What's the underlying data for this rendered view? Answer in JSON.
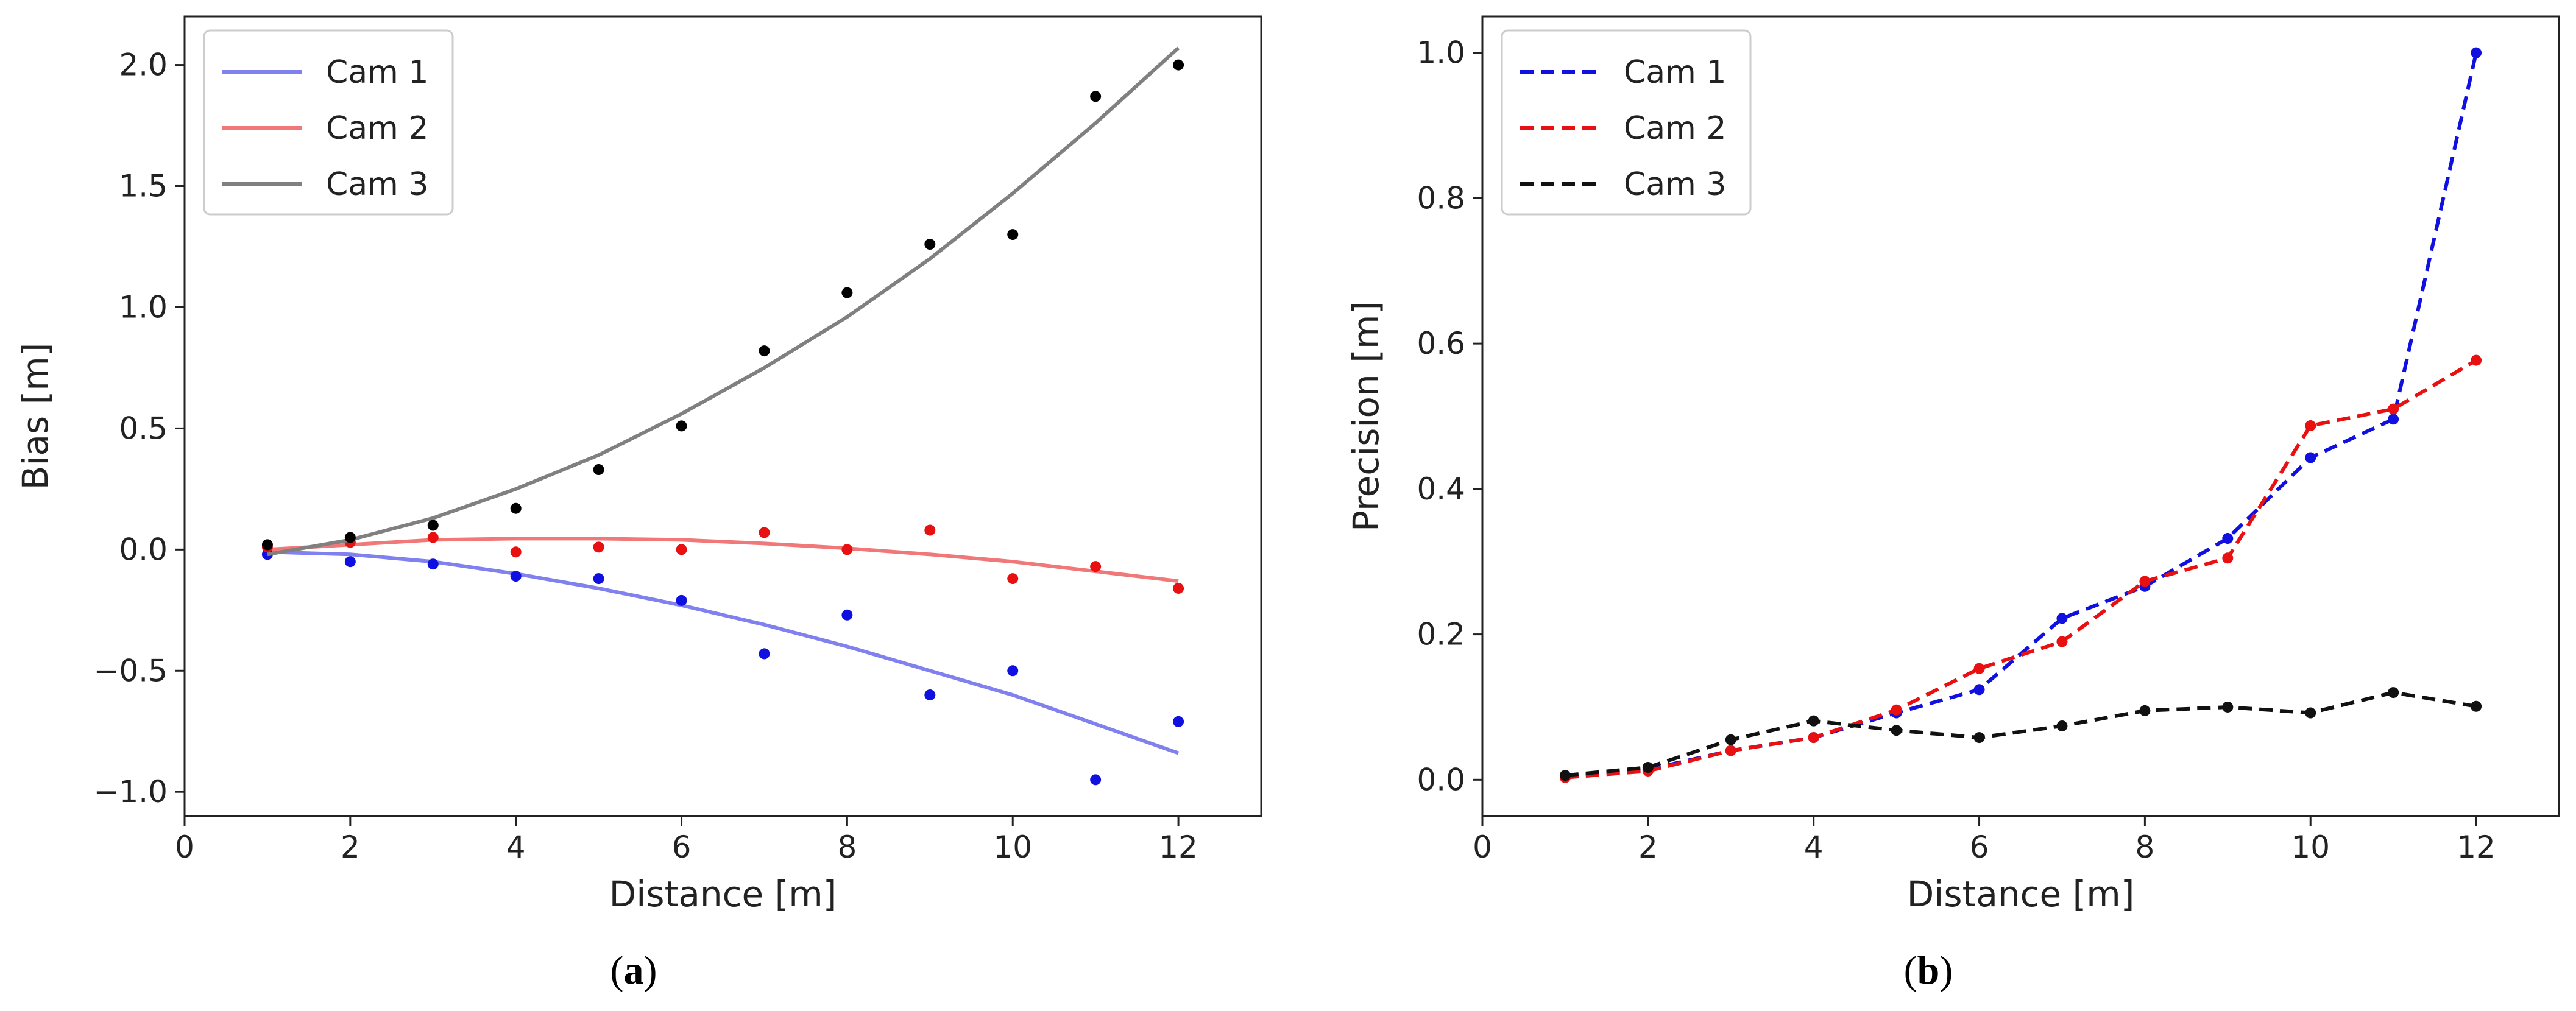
{
  "chart_data": [
    {
      "type": "scatter",
      "caption_open": "(",
      "caption_letter": "a",
      "caption_close": ")",
      "title": "",
      "xlabel": "Distance [m]",
      "ylabel": "Bias [m]",
      "xlim": [
        0,
        13
      ],
      "ylim": [
        -1.1,
        2.2
      ],
      "xticks": [
        0,
        2,
        4,
        6,
        8,
        10,
        12
      ],
      "yticks": [
        -1.0,
        -0.5,
        0.0,
        0.5,
        1.0,
        1.5,
        2.0
      ],
      "ytick_labels": [
        "−1.0",
        "−0.5",
        "0.0",
        "0.5",
        "1.0",
        "1.5",
        "2.0"
      ],
      "grid": false,
      "legend_position": "top-left",
      "series": [
        {
          "name": "Cam 1",
          "fit_color": "#8080ee",
          "point_color": "#1010e0",
          "x": [
            1,
            2,
            3,
            4,
            5,
            6,
            7,
            8,
            9,
            10,
            11,
            12
          ],
          "points": [
            -0.02,
            -0.05,
            -0.06,
            -0.11,
            -0.12,
            -0.21,
            -0.43,
            -0.27,
            -0.6,
            -0.5,
            -0.95,
            -0.71
          ],
          "fit": [
            -0.01,
            -0.02,
            -0.05,
            -0.1,
            -0.16,
            -0.23,
            -0.31,
            -0.4,
            -0.5,
            -0.6,
            -0.72,
            -0.84
          ]
        },
        {
          "name": "Cam 2",
          "fit_color": "#f07878",
          "point_color": "#e81010",
          "x": [
            1,
            2,
            3,
            4,
            5,
            6,
            7,
            8,
            9,
            10,
            11,
            12
          ],
          "points": [
            0.01,
            0.03,
            0.05,
            -0.01,
            0.01,
            0.0,
            0.07,
            0.0,
            0.08,
            -0.12,
            -0.07,
            -0.16
          ],
          "fit": [
            0.0,
            0.02,
            0.04,
            0.045,
            0.045,
            0.04,
            0.025,
            0.005,
            -0.02,
            -0.05,
            -0.09,
            -0.13
          ]
        },
        {
          "name": "Cam 3",
          "fit_color": "#808080",
          "point_color": "#000000",
          "x": [
            1,
            2,
            3,
            4,
            5,
            6,
            7,
            8,
            9,
            10,
            11,
            12
          ],
          "points": [
            0.02,
            0.05,
            0.1,
            0.17,
            0.33,
            0.51,
            0.82,
            1.06,
            1.26,
            1.3,
            1.87,
            2.0
          ],
          "fit": [
            -0.02,
            0.04,
            0.13,
            0.25,
            0.39,
            0.56,
            0.75,
            0.96,
            1.2,
            1.47,
            1.76,
            2.07
          ]
        }
      ]
    },
    {
      "type": "line",
      "caption_open": "(",
      "caption_letter": "b",
      "caption_close": ")",
      "title": "",
      "xlabel": "Distance [m]",
      "ylabel": "Precision [m]",
      "xlim": [
        0,
        13
      ],
      "ylim": [
        -0.05,
        1.05
      ],
      "xticks": [
        0,
        2,
        4,
        6,
        8,
        10,
        12
      ],
      "yticks": [
        0.0,
        0.2,
        0.4,
        0.6,
        0.8,
        1.0
      ],
      "ytick_labels": [
        "0.0",
        "0.2",
        "0.4",
        "0.6",
        "0.8",
        "1.0"
      ],
      "grid": false,
      "legend_position": "top-left",
      "series": [
        {
          "name": "Cam 1",
          "color": "#1010e0",
          "x": [
            1,
            2,
            3,
            4,
            5,
            6,
            7,
            8,
            9,
            10,
            11,
            12
          ],
          "values": [
            0.004,
            0.014,
            0.04,
            0.058,
            0.092,
            0.124,
            0.222,
            0.266,
            0.332,
            0.443,
            0.496,
            1.0
          ]
        },
        {
          "name": "Cam 2",
          "color": "#e81010",
          "x": [
            1,
            2,
            3,
            4,
            5,
            6,
            7,
            8,
            9,
            10,
            11,
            12
          ],
          "values": [
            0.003,
            0.012,
            0.04,
            0.058,
            0.096,
            0.153,
            0.19,
            0.273,
            0.305,
            0.487,
            0.51,
            0.577
          ]
        },
        {
          "name": "Cam 3",
          "color": "#111111",
          "x": [
            1,
            2,
            3,
            4,
            5,
            6,
            7,
            8,
            9,
            10,
            11,
            12
          ],
          "values": [
            0.006,
            0.017,
            0.055,
            0.081,
            0.068,
            0.058,
            0.074,
            0.095,
            0.1,
            0.092,
            0.12,
            0.101
          ]
        }
      ]
    }
  ]
}
